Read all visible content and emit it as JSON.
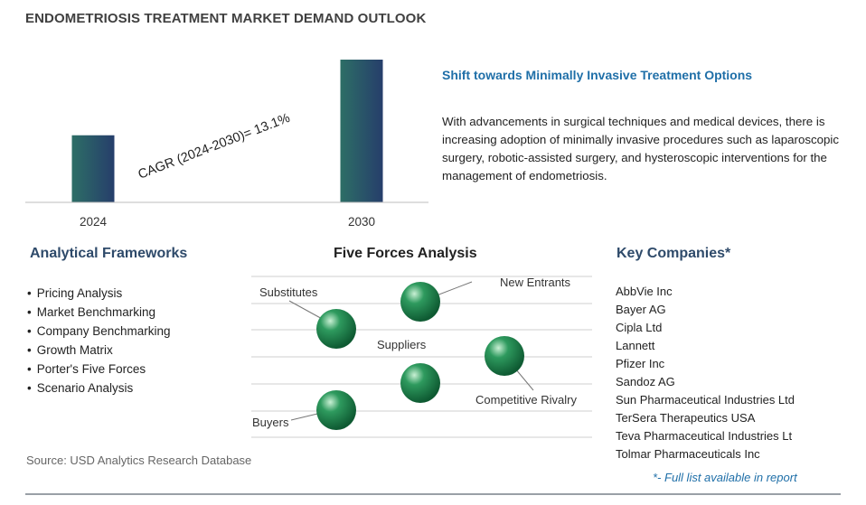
{
  "title": "ENDOMETRIOSIS TREATMENT MARKET DEMAND OUTLOOK",
  "chart_data": {
    "type": "bar",
    "categories": [
      "2024",
      "2030"
    ],
    "values": [
      0.47,
      1.0
    ],
    "value_note": "relative bar heights (no y-axis values printed)",
    "annotation": "CAGR (2024-2030)=  13.1%",
    "bar_color": "#2d6e66",
    "bar_color_top": "#263e6b",
    "grid": false,
    "ylim": [
      0,
      1
    ]
  },
  "shift": {
    "title": "Shift towards Minimally Invasive Treatment Options",
    "text": "With advancements in surgical techniques and medical devices, there is increasing adoption of minimally invasive procedures such as laparoscopic surgery, robotic-assisted surgery, and hysteroscopic interventions for the management of endometriosis."
  },
  "frameworks": {
    "title": "Analytical Frameworks",
    "items": [
      "Pricing Analysis",
      "Market Benchmarking",
      "Company Benchmarking",
      "Growth Matrix",
      "Porter's Five Forces",
      "Scenario Analysis"
    ]
  },
  "five_forces": {
    "title": "Five Forces Analysis",
    "labels": {
      "substitutes": "Substitutes",
      "new_entrants": "New Entrants",
      "suppliers": "Suppliers",
      "competitive_rivalry": "Competitive Rivalry",
      "buyers": "Buyers"
    },
    "sphere_color": "#2e9a5e"
  },
  "companies": {
    "title": "Key Companies*",
    "items": [
      "AbbVie Inc",
      "Bayer AG",
      "Cipla Ltd",
      "Lannett",
      "Pfizer Inc",
      "Sandoz AG",
      "Sun Pharmaceutical Industries Ltd",
      "TerSera Therapeutics USA",
      "Teva Pharmaceutical Industries Lt",
      "Tolmar Pharmaceuticals Inc"
    ],
    "note": "*- Full list available in report"
  },
  "source": "Source: USD Analytics Research Database"
}
